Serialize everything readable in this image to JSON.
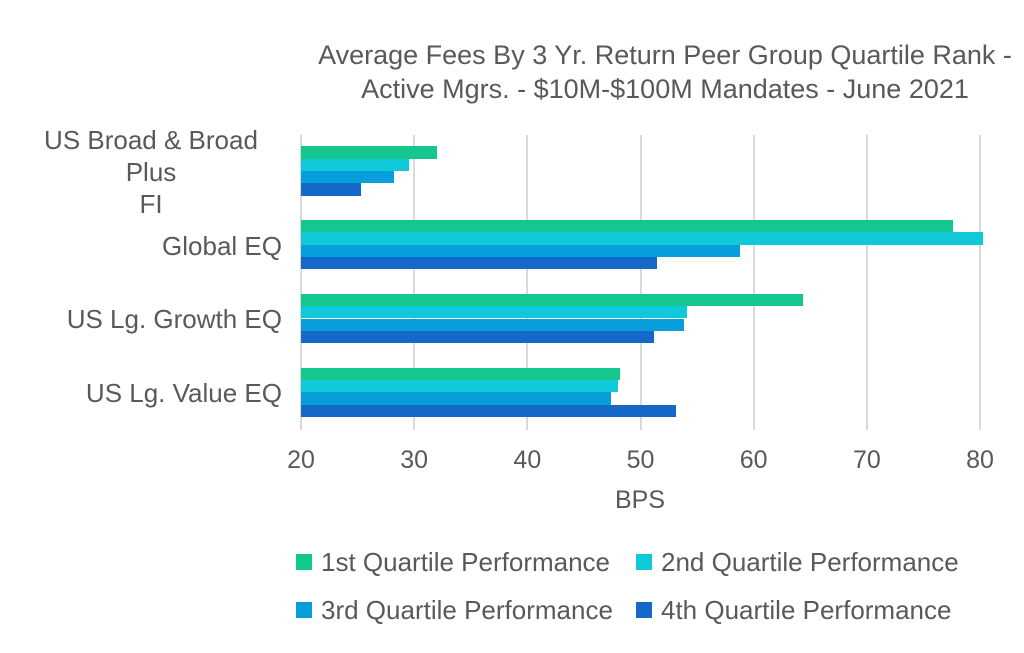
{
  "chart_data": {
    "type": "bar",
    "orientation": "horizontal",
    "title": "Average Fees By 3 Yr. Return Peer Group Quartile Rank - Active Mgrs. - $10M-$100M Mandates - June 2021",
    "title_lines": [
      "Average Fees By 3 Yr. Return Peer Group Quartile Rank -",
      "Active Mgrs. - $10M-$100M Mandates - June 2021"
    ],
    "xlabel": "BPS",
    "x_ticks": [
      20,
      30,
      40,
      50,
      60,
      70,
      80
    ],
    "xlim": [
      20,
      82.3
    ],
    "grid": true,
    "legend_position": "bottom",
    "categories": [
      "US Broad & Broad Plus\nFI",
      "Global EQ",
      "US Lg. Growth EQ",
      "US Lg. Value EQ"
    ],
    "series": [
      {
        "name": "1st Quartile Performance",
        "color": "#13C78F",
        "values": [
          32.0,
          77.6,
          64.4,
          48.2
        ]
      },
      {
        "name": "2nd Quartile Performance",
        "color": "#0FC9D8",
        "values": [
          29.5,
          80.3,
          54.1,
          48.0
        ]
      },
      {
        "name": "3rd Quartile Performance",
        "color": "#089EDB",
        "values": [
          28.2,
          58.8,
          53.8,
          47.4
        ]
      },
      {
        "name": "4th Quartile Performance",
        "color": "#1568C8",
        "values": [
          25.3,
          51.5,
          51.2,
          53.1
        ]
      }
    ],
    "colors": {
      "text": "#595959",
      "gridline": "#D9D9D9",
      "background": "#FFFFFF"
    }
  }
}
